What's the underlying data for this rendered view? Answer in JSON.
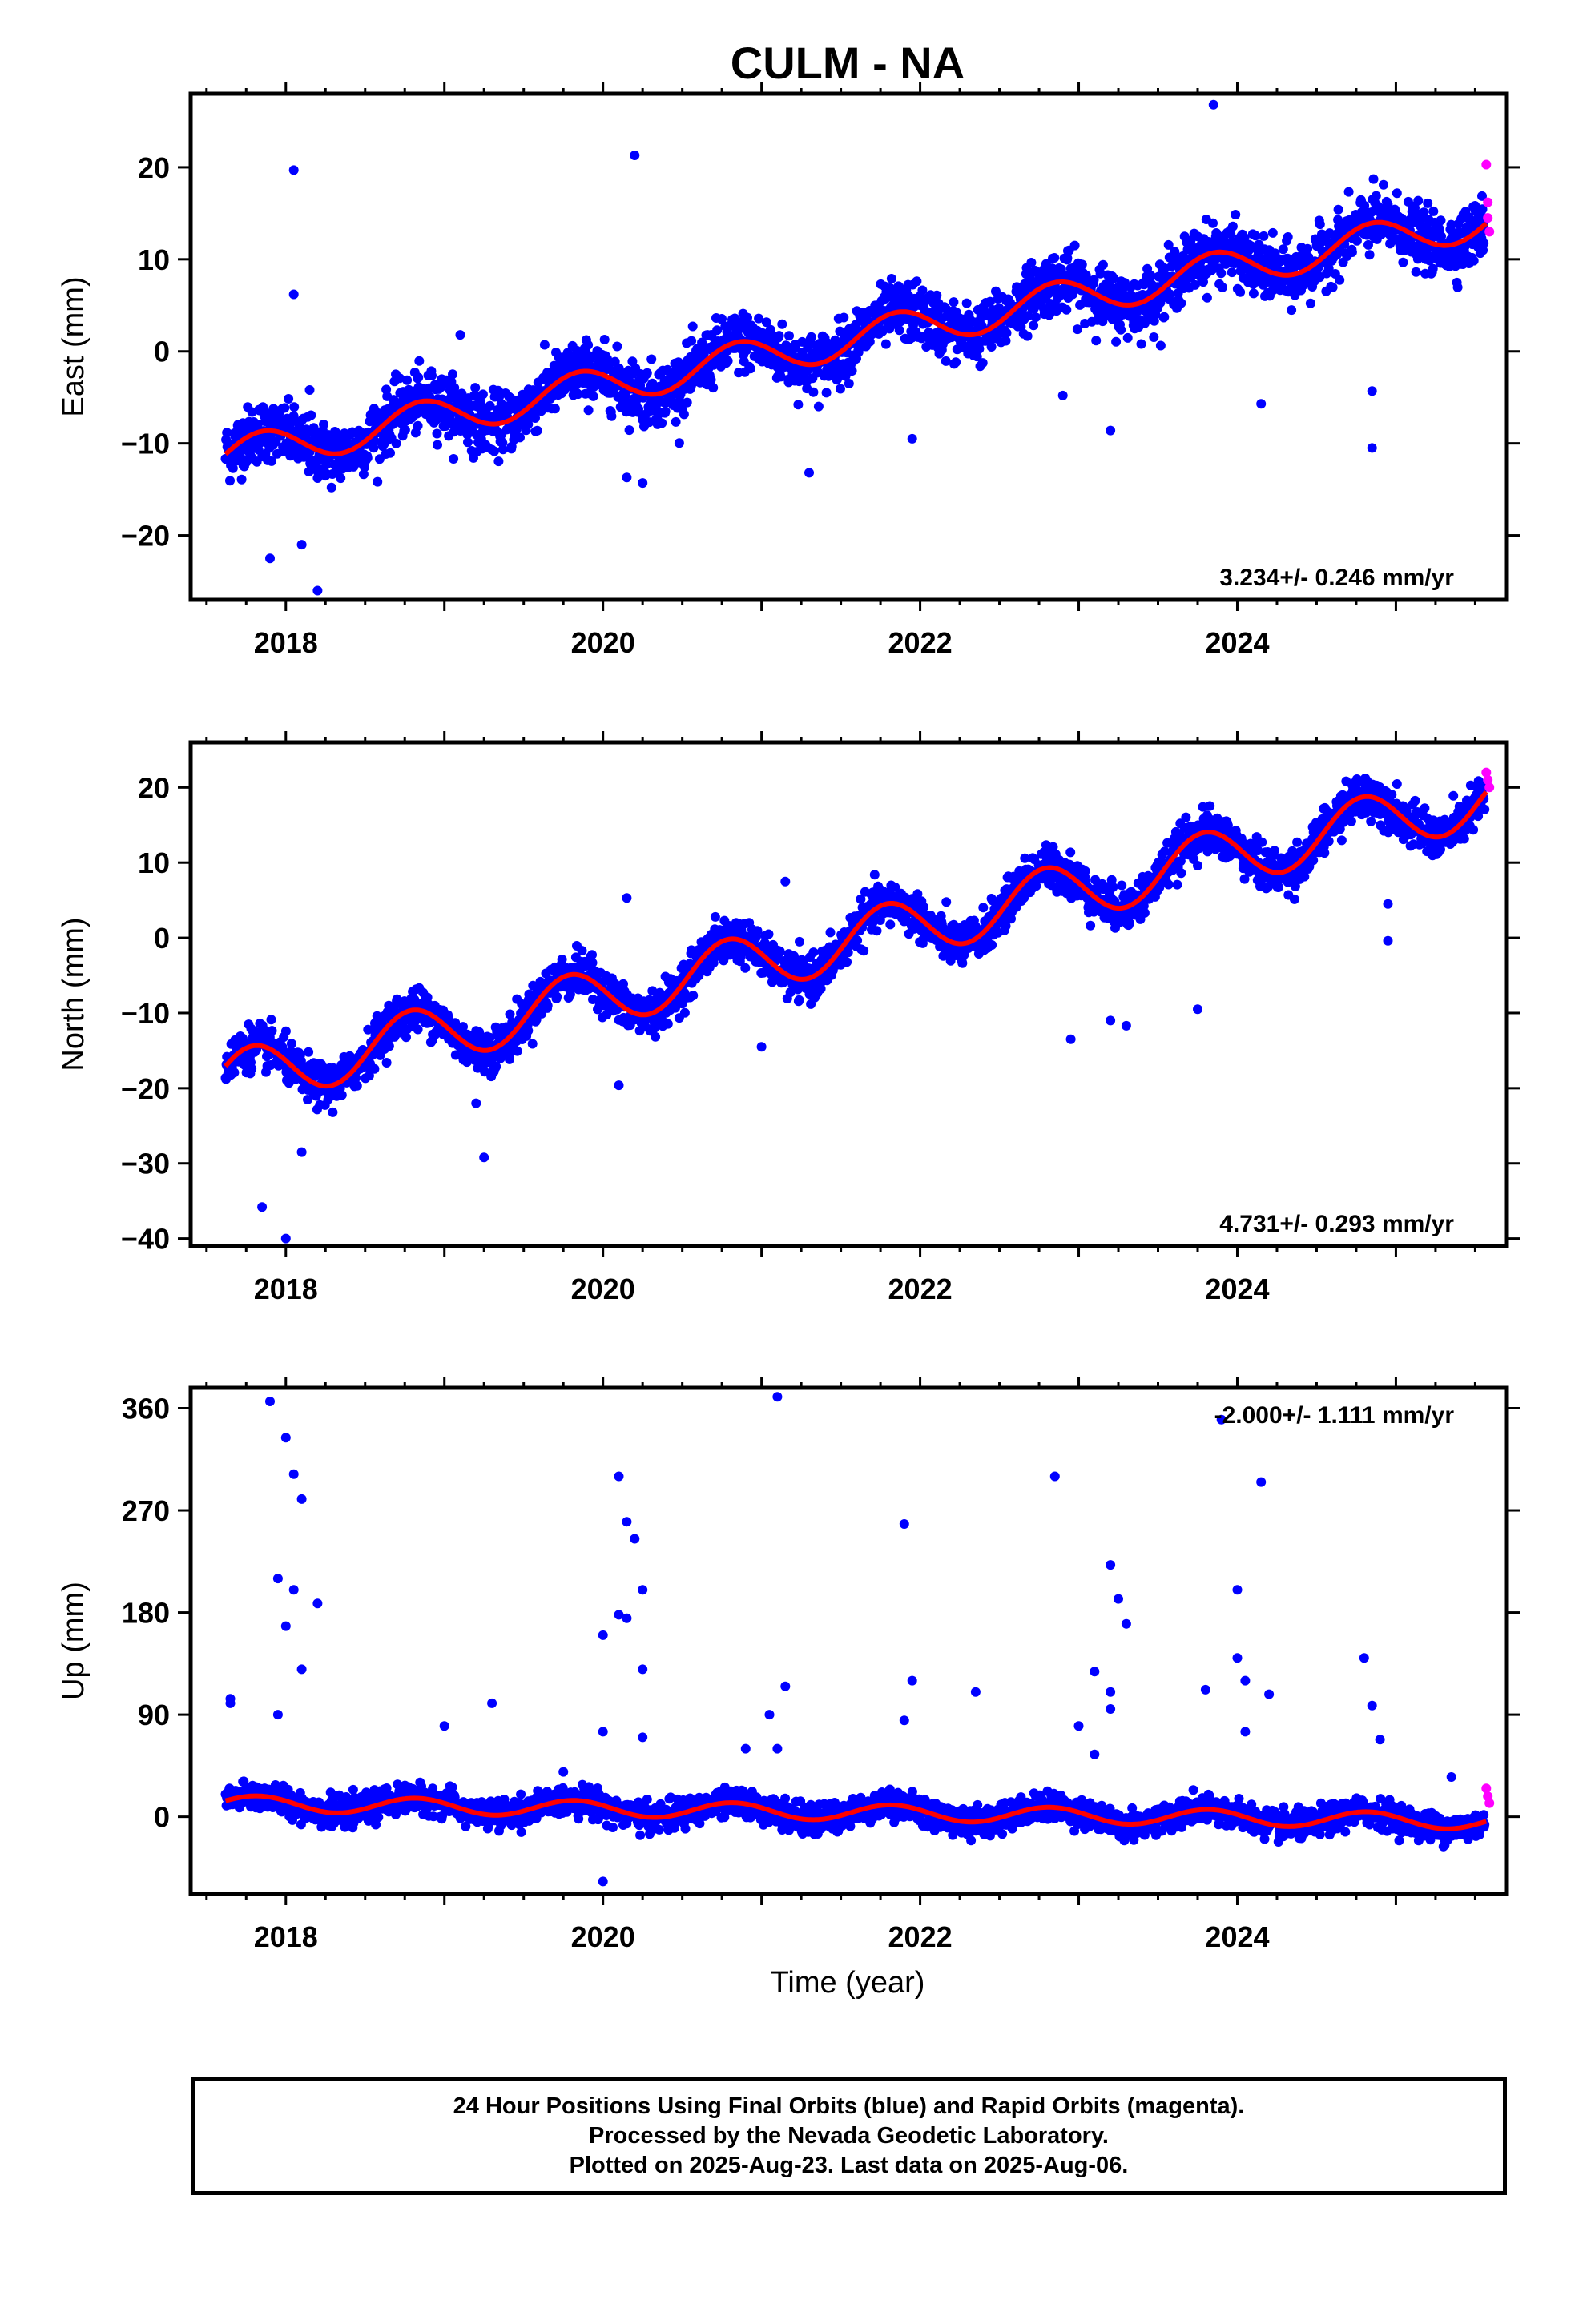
{
  "chart_data": {
    "title": "CULM - NA",
    "xlabel": "Time (year)",
    "x_tick_labels": [
      "2018",
      "2020",
      "2022",
      "2024"
    ],
    "x_range": [
      2017.4,
      2025.7
    ],
    "colors": {
      "final_orbits": "#0000ff",
      "rapid_orbits": "#ff00ff",
      "model_fit": "#ff0000"
    },
    "panels": [
      {
        "type": "scatter",
        "ylabel": "East (mm)",
        "ylim": [
          -27,
          28
        ],
        "y_ticks": [
          20,
          10,
          0,
          -10,
          -20
        ],
        "y_tick_labels": [
          "20",
          "10",
          "0",
          "−10",
          "−20"
        ],
        "rate_label": "3.234+/- 0.246 mm/yr",
        "rate_position": "bottom-right",
        "trend": {
          "slope_mm_per_yr": 3.234,
          "value_at_2021": -0.5,
          "annual_amplitude": 2.0,
          "annual_phase_rad": 0.0
        },
        "point_scatter_mm": 1.6,
        "outliers": [
          [
            2017.9,
            -22.5
          ],
          [
            2018.05,
            19.7
          ],
          [
            2018.05,
            6.2
          ],
          [
            2018.1,
            -21.0
          ],
          [
            2018.2,
            -26.0
          ],
          [
            2018.15,
            -4.2
          ],
          [
            2020.2,
            21.3
          ],
          [
            2020.15,
            -13.7
          ],
          [
            2020.25,
            -14.3
          ],
          [
            2019.1,
            1.8
          ],
          [
            2021.3,
            -13.2
          ],
          [
            2021.95,
            -9.5
          ],
          [
            2022.9,
            -4.8
          ],
          [
            2023.2,
            -8.6
          ],
          [
            2023.85,
            26.8
          ],
          [
            2024.15,
            -5.7
          ],
          [
            2024.85,
            -10.5
          ],
          [
            2024.85,
            -4.3
          ]
        ],
        "rapid_points": [
          [
            2025.57,
            20.3
          ],
          [
            2025.58,
            16.2
          ],
          [
            2025.58,
            14.5
          ],
          [
            2025.59,
            13.0
          ]
        ]
      },
      {
        "type": "scatter",
        "ylabel": "North (mm)",
        "ylim": [
          -41,
          26
        ],
        "y_ticks": [
          20,
          10,
          0,
          -10,
          -20,
          -30,
          -40
        ],
        "y_tick_labels": [
          "20",
          "10",
          "0",
          "−10",
          "−20",
          "−30",
          "−40"
        ],
        "rate_label": "4.731+/- 0.293 mm/yr",
        "rate_position": "bottom-right",
        "trend": {
          "slope_mm_per_yr": 4.731,
          "value_at_2021": -3.0,
          "annual_amplitude": 3.8,
          "annual_phase_rad": 0.4
        },
        "point_scatter_mm": 1.4,
        "outliers": [
          [
            2017.85,
            -35.8
          ],
          [
            2018.0,
            -40.0
          ],
          [
            2018.1,
            -28.5
          ],
          [
            2019.25,
            -29.2
          ],
          [
            2019.2,
            -22.0
          ],
          [
            2020.1,
            -19.6
          ],
          [
            2020.15,
            5.3
          ],
          [
            2021.15,
            7.5
          ],
          [
            2021.0,
            -14.5
          ],
          [
            2022.95,
            -13.5
          ],
          [
            2023.2,
            -11.0
          ],
          [
            2023.3,
            -11.7
          ],
          [
            2023.75,
            -9.5
          ],
          [
            2024.95,
            -0.4
          ],
          [
            2024.95,
            4.5
          ]
        ],
        "rapid_points": [
          [
            2025.57,
            22.0
          ],
          [
            2025.58,
            21.0
          ],
          [
            2025.59,
            20.0
          ]
        ]
      },
      {
        "type": "scatter",
        "ylabel": "Up (mm)",
        "ylim": [
          -68,
          378
        ],
        "y_ticks": [
          360,
          270,
          180,
          90,
          0
        ],
        "y_tick_labels": [
          "360",
          "270",
          "180",
          "90",
          "0"
        ],
        "rate_label": "-2.000+/- 1.111 mm/yr",
        "rate_position": "top-right",
        "trend": {
          "slope_mm_per_yr": -2.0,
          "value_at_2021": 5.0,
          "annual_amplitude": 7.0,
          "annual_phase_rad": 0.2
        },
        "point_scatter_mm": 6.0,
        "outliers": [
          [
            2017.65,
            100
          ],
          [
            2017.65,
            104
          ],
          [
            2017.9,
            366
          ],
          [
            2018.0,
            334
          ],
          [
            2018.05,
            302
          ],
          [
            2018.1,
            280
          ],
          [
            2018.1,
            130
          ],
          [
            2017.95,
            210
          ],
          [
            2018.05,
            200
          ],
          [
            2018.0,
            168
          ],
          [
            2018.2,
            188
          ],
          [
            2017.95,
            90
          ],
          [
            2020.1,
            300
          ],
          [
            2020.15,
            260
          ],
          [
            2020.2,
            245
          ],
          [
            2020.1,
            178
          ],
          [
            2020.15,
            175
          ],
          [
            2020.0,
            160
          ],
          [
            2020.25,
            200
          ],
          [
            2020.25,
            130
          ],
          [
            2020.0,
            75
          ],
          [
            2020.25,
            70
          ],
          [
            2019.0,
            80
          ],
          [
            2019.3,
            100
          ],
          [
            2020.0,
            -57
          ],
          [
            2021.1,
            370
          ],
          [
            2021.15,
            115
          ],
          [
            2021.05,
            90
          ],
          [
            2020.9,
            60
          ],
          [
            2021.1,
            60
          ],
          [
            2021.9,
            258
          ],
          [
            2021.95,
            120
          ],
          [
            2021.9,
            85
          ],
          [
            2022.35,
            110
          ],
          [
            2022.85,
            300
          ],
          [
            2023.2,
            222
          ],
          [
            2023.25,
            192
          ],
          [
            2023.3,
            170
          ],
          [
            2023.1,
            128
          ],
          [
            2023.2,
            110
          ],
          [
            2023.2,
            95
          ],
          [
            2023.0,
            80
          ],
          [
            2023.1,
            55
          ],
          [
            2023.8,
            112
          ],
          [
            2023.9,
            350
          ],
          [
            2024.0,
            200
          ],
          [
            2024.0,
            140
          ],
          [
            2024.05,
            120
          ],
          [
            2024.15,
            295
          ],
          [
            2024.2,
            108
          ],
          [
            2024.05,
            75
          ],
          [
            2024.8,
            140
          ],
          [
            2024.85,
            98
          ],
          [
            2024.9,
            68
          ],
          [
            2025.35,
            35
          ]
        ],
        "rapid_points": [
          [
            2025.57,
            25
          ],
          [
            2025.58,
            18
          ],
          [
            2025.59,
            12
          ]
        ]
      }
    ]
  },
  "footer": {
    "line1": "24 Hour Positions Using Final Orbits (blue) and Rapid Orbits (magenta).",
    "line2": "Processed by the Nevada Geodetic Laboratory.",
    "line3": "Plotted on 2025-Aug-23. Last data on 2025-Aug-06."
  }
}
